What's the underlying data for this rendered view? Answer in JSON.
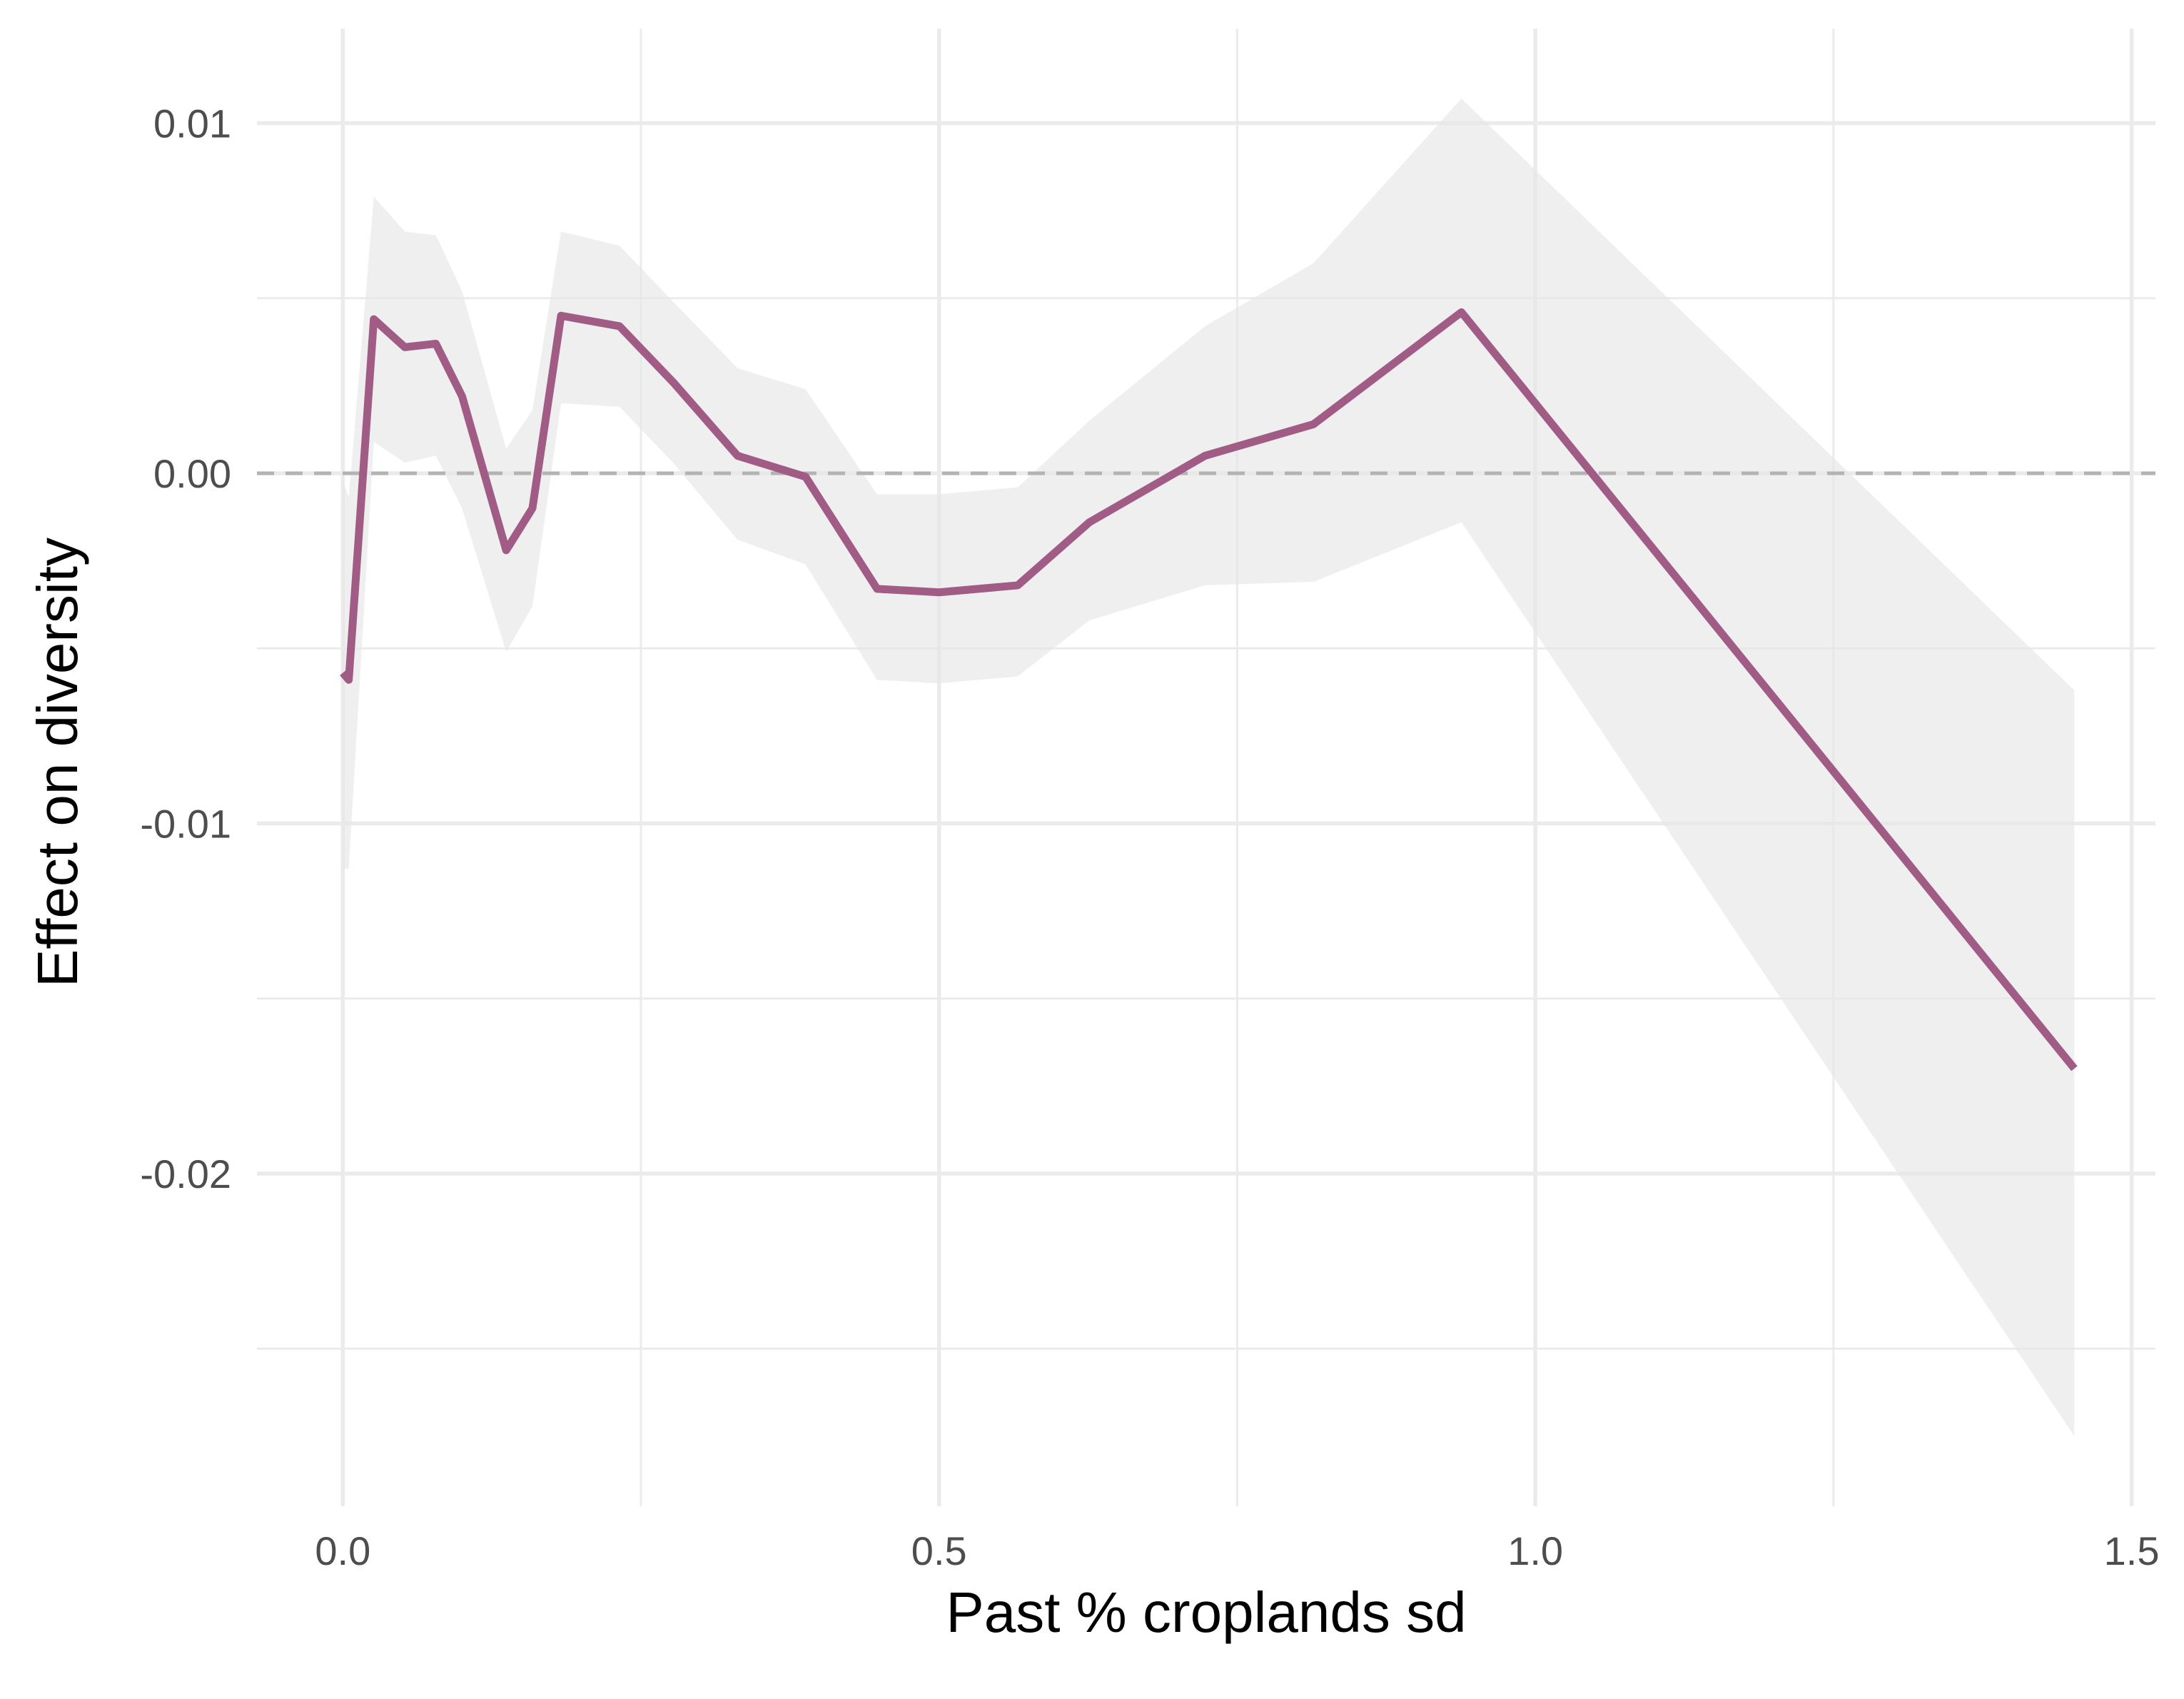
{
  "chart_data": {
    "type": "line",
    "xlabel": "Past % croplands sd",
    "ylabel": "Effect on diversity",
    "xlim": [
      -0.072,
      1.52
    ],
    "ylim": [
      -0.0295,
      0.0127
    ],
    "x_ticks": [
      0.0,
      0.5,
      1.0,
      1.5
    ],
    "x_tick_labels": [
      "0.0",
      "0.5",
      "1.0",
      "1.5"
    ],
    "y_ticks": [
      0.01,
      0.0,
      -0.01,
      -0.02
    ],
    "y_tick_labels": [
      "0.01",
      "0.00",
      "-0.01",
      "-0.02"
    ],
    "grid": true,
    "reference_line": {
      "y": 0.0,
      "style": "dashed"
    },
    "series": [
      {
        "x": [
          0.0,
          0.005,
          0.026,
          0.052,
          0.078,
          0.1,
          0.137,
          0.159,
          0.183,
          0.232,
          0.277,
          0.331,
          0.388,
          0.448,
          0.5,
          0.566,
          0.626,
          0.723,
          0.814,
          0.938,
          1.452
        ],
        "y": [
          -0.0057,
          -0.0059,
          0.0044,
          0.0036,
          0.0037,
          0.0022,
          -0.0022,
          -0.001,
          0.0045,
          0.0042,
          0.0026,
          0.0005,
          -0.0001,
          -0.0033,
          -0.0034,
          -0.0032,
          -0.0014,
          0.0005,
          0.0014,
          0.0046,
          -0.017
        ],
        "lower": [
          -0.0113,
          -0.0113,
          0.0009,
          0.0003,
          0.0005,
          -0.001,
          -0.0051,
          -0.0038,
          0.002,
          0.0019,
          0.0003,
          -0.0019,
          -0.0026,
          -0.0059,
          -0.006,
          -0.0058,
          -0.0042,
          -0.0032,
          -0.0031,
          -0.0014,
          -0.0275
        ],
        "upper": [
          -0.0002,
          -0.0007,
          0.0079,
          0.0069,
          0.0068,
          0.0052,
          0.0007,
          0.0018,
          0.0069,
          0.0065,
          0.0049,
          0.003,
          0.0024,
          -0.0006,
          -0.0006,
          -0.0004,
          0.0015,
          0.0042,
          0.006,
          0.0107,
          -0.0062
        ]
      }
    ],
    "line_color": "#a05c85",
    "band_color": "#e6e6e6",
    "ref_line_color": "#b3b3b3",
    "grid_color": "#ebebeb"
  }
}
